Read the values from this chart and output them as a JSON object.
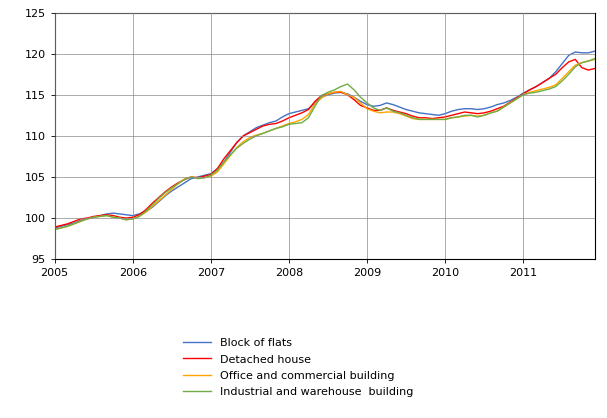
{
  "title": "",
  "ylim": [
    95,
    125
  ],
  "yticks": [
    95,
    100,
    105,
    110,
    115,
    120,
    125
  ],
  "xlim_start": 2005.0,
  "xlim_end": 2011.917,
  "xtick_labels": [
    "2005",
    "2006",
    "2007",
    "2008",
    "2009",
    "2010",
    "2011"
  ],
  "xtick_positions": [
    2005,
    2006,
    2007,
    2008,
    2009,
    2010,
    2011
  ],
  "colors": {
    "block_of_flats": "#4472C4",
    "detached_house": "#FF0000",
    "office_commercial": "#FFA500",
    "industrial_warehouse": "#70AD47"
  },
  "legend_labels": [
    "Block of flats",
    "Detached house",
    "Office and commercial building",
    "Industrial and warehouse  building"
  ],
  "background_color": "#FFFFFF",
  "grid_color": "#888888",
  "series": {
    "block_of_flats": [
      98.8,
      99.0,
      99.2,
      99.4,
      99.7,
      99.9,
      100.1,
      100.3,
      100.5,
      100.6,
      100.5,
      100.4,
      100.3,
      100.5,
      100.8,
      101.3,
      102.0,
      102.7,
      103.3,
      103.8,
      104.3,
      104.8,
      105.0,
      105.2,
      105.4,
      106.0,
      106.8,
      108.0,
      109.2,
      110.0,
      110.5,
      111.0,
      111.3,
      111.6,
      111.8,
      112.3,
      112.7,
      112.9,
      113.1,
      113.3,
      114.0,
      114.7,
      115.0,
      115.2,
      115.3,
      115.1,
      114.7,
      114.2,
      113.8,
      113.6,
      113.7,
      114.0,
      113.8,
      113.5,
      113.2,
      113.0,
      112.8,
      112.7,
      112.6,
      112.5,
      112.7,
      113.0,
      113.2,
      113.3,
      113.3,
      113.2,
      113.3,
      113.5,
      113.8,
      114.0,
      114.3,
      114.7,
      115.2,
      115.6,
      116.0,
      116.5,
      117.0,
      117.8,
      118.8,
      119.8,
      120.2,
      120.1,
      120.1,
      120.3
    ],
    "detached_house": [
      98.9,
      99.1,
      99.3,
      99.6,
      99.9,
      100.0,
      100.2,
      100.3,
      100.4,
      100.3,
      100.1,
      100.0,
      100.1,
      100.4,
      101.0,
      101.8,
      102.5,
      103.2,
      103.8,
      104.3,
      104.7,
      105.0,
      104.9,
      105.1,
      105.3,
      106.0,
      107.2,
      108.2,
      109.2,
      110.0,
      110.4,
      110.8,
      111.2,
      111.4,
      111.5,
      111.8,
      112.2,
      112.5,
      112.8,
      113.2,
      114.2,
      114.9,
      115.1,
      115.3,
      115.3,
      115.0,
      114.4,
      113.7,
      113.4,
      113.1,
      113.1,
      113.4,
      113.1,
      112.9,
      112.7,
      112.4,
      112.2,
      112.2,
      112.1,
      112.2,
      112.3,
      112.5,
      112.7,
      112.9,
      112.8,
      112.7,
      112.8,
      113.0,
      113.3,
      113.6,
      114.1,
      114.6,
      115.1,
      115.6,
      116.0,
      116.5,
      117.0,
      117.5,
      118.3,
      119.0,
      119.3,
      118.3,
      118.0,
      118.2
    ],
    "office_commercial": [
      98.6,
      98.8,
      99.0,
      99.3,
      99.6,
      99.9,
      100.1,
      100.2,
      100.3,
      100.1,
      100.0,
      99.8,
      99.9,
      100.2,
      100.7,
      101.4,
      102.1,
      102.8,
      103.5,
      104.2,
      104.8,
      105.0,
      104.9,
      104.9,
      105.1,
      105.6,
      106.6,
      107.6,
      108.6,
      109.3,
      109.8,
      110.1,
      110.3,
      110.6,
      110.9,
      111.2,
      111.5,
      111.7,
      112.0,
      112.6,
      113.9,
      114.6,
      115.1,
      115.3,
      115.4,
      115.0,
      114.7,
      114.0,
      113.3,
      113.0,
      112.8,
      112.9,
      112.9,
      112.7,
      112.4,
      112.1,
      112.0,
      112.0,
      112.0,
      112.0,
      112.0,
      112.2,
      112.3,
      112.4,
      112.5,
      112.4,
      112.5,
      112.8,
      113.0,
      113.5,
      114.0,
      114.5,
      115.0,
      115.3,
      115.5,
      115.7,
      115.9,
      116.2,
      117.0,
      117.8,
      118.6,
      118.9,
      119.1,
      119.3
    ],
    "industrial_warehouse": [
      98.6,
      98.8,
      99.0,
      99.3,
      99.6,
      99.9,
      100.1,
      100.2,
      100.3,
      100.1,
      100.0,
      99.8,
      99.9,
      100.2,
      100.8,
      101.6,
      102.4,
      103.1,
      103.7,
      104.2,
      104.7,
      105.0,
      104.8,
      104.9,
      105.2,
      105.8,
      106.8,
      107.7,
      108.5,
      109.1,
      109.6,
      110.0,
      110.3,
      110.6,
      110.9,
      111.1,
      111.4,
      111.5,
      111.6,
      112.2,
      113.6,
      114.9,
      115.3,
      115.6,
      116.0,
      116.3,
      115.6,
      114.7,
      114.0,
      113.4,
      113.1,
      113.4,
      113.0,
      112.8,
      112.5,
      112.2,
      112.0,
      112.0,
      112.0,
      112.0,
      112.0,
      112.2,
      112.3,
      112.5,
      112.5,
      112.3,
      112.5,
      112.8,
      113.0,
      113.5,
      114.0,
      114.5,
      115.0,
      115.2,
      115.3,
      115.5,
      115.7,
      116.0,
      116.7,
      117.5,
      118.4,
      118.9,
      119.1,
      119.4
    ]
  }
}
